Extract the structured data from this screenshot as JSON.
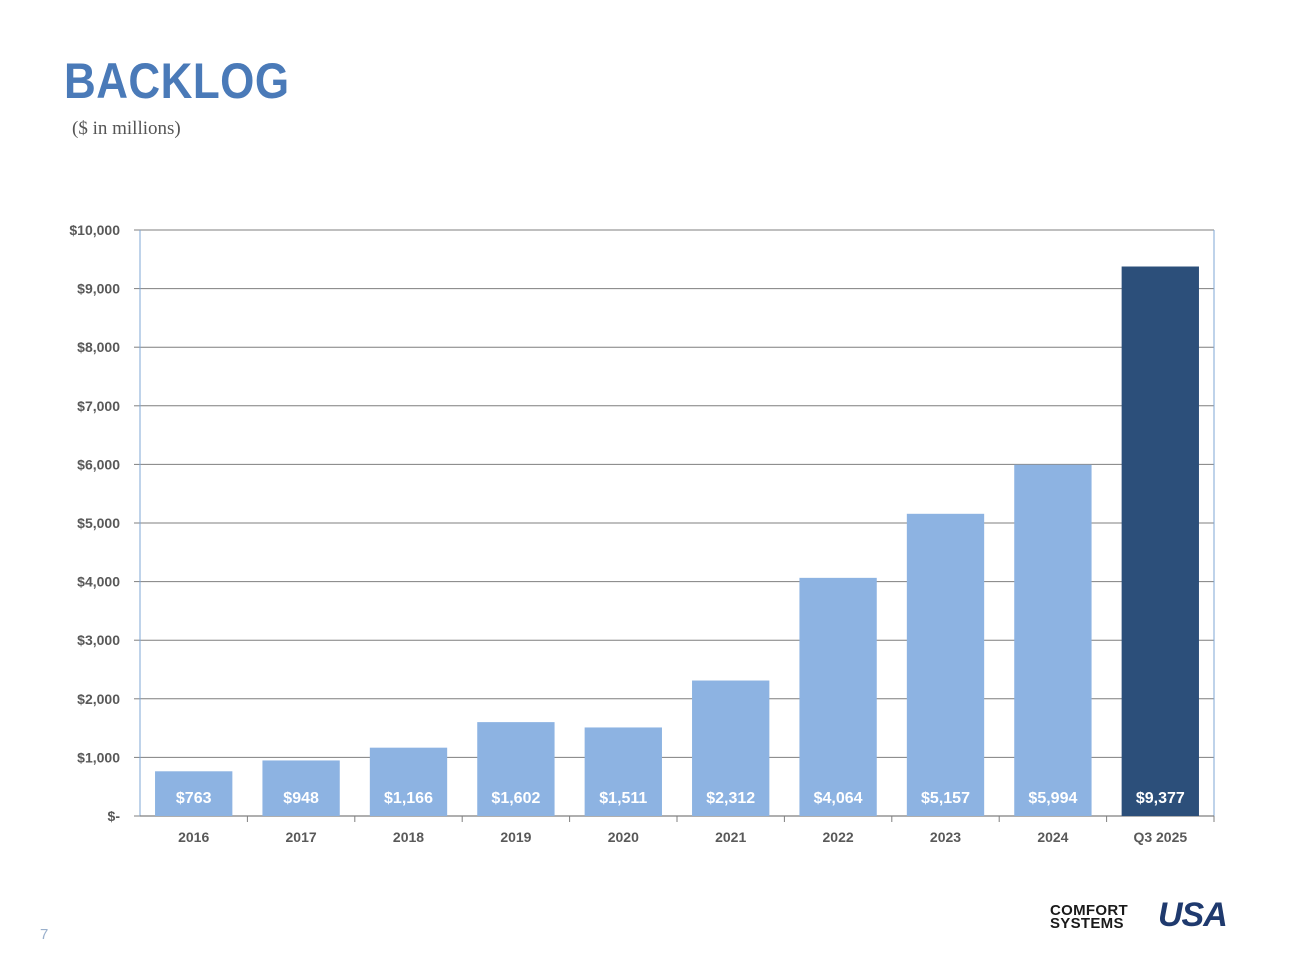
{
  "header": {
    "title": "BACKLOG",
    "subtitle": "($ in millions)"
  },
  "footer": {
    "page_number": "7",
    "logo_line1": "COMFORT",
    "logo_line2": "SYSTEMS",
    "logo_mark": "USA"
  },
  "colors": {
    "bar": "#8db3e2",
    "highlight_bar": "#2c4f7a",
    "title": "#4a7ab8",
    "gridline": "#7f7f7f",
    "axis_text": "#595959",
    "data_label": "#ffffff"
  },
  "chart_data": {
    "type": "bar",
    "categories": [
      "2016",
      "2017",
      "2018",
      "2019",
      "2020",
      "2021",
      "2022",
      "2023",
      "2024",
      "Q3 2025"
    ],
    "values": [
      763,
      948,
      1166,
      1602,
      1511,
      2312,
      4064,
      5157,
      5994,
      9377
    ],
    "data_labels": [
      "$763",
      "$948",
      "$1,166",
      "$1,602",
      "$1,511",
      "$2,312",
      "$4,064",
      "$5,157",
      "$5,994",
      "$9,377"
    ],
    "highlight_index": 9,
    "ylim": [
      0,
      10000
    ],
    "yticks": [
      0,
      1000,
      2000,
      3000,
      4000,
      5000,
      6000,
      7000,
      8000,
      9000,
      10000
    ],
    "ytick_labels": [
      "$-",
      "$1,000",
      "$2,000",
      "$3,000",
      "$4,000",
      "$5,000",
      "$6,000",
      "$7,000",
      "$8,000",
      "$9,000",
      "$10,000"
    ],
    "grid": true,
    "legend": "none"
  }
}
